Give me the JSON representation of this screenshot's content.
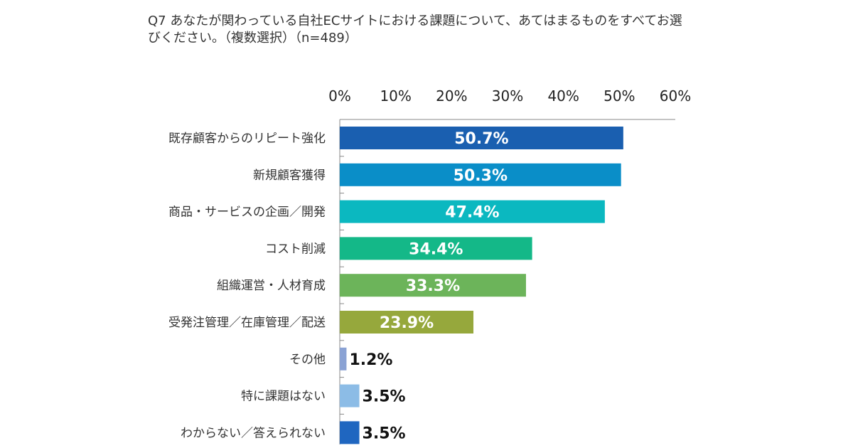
{
  "chart_data": {
    "type": "bar",
    "orientation": "horizontal",
    "title": "Q7 あなたが関わっている自社ECサイトにおける課題について、あてはまるものをすべてお選びください。（複数選択）（n=489）",
    "xlabel": "",
    "ylabel": "",
    "xlim": [
      0,
      60
    ],
    "x_ticks": [
      0,
      10,
      20,
      30,
      40,
      50,
      60
    ],
    "tick_suffix": "%",
    "axis_position": "top",
    "grid": false,
    "legend": "none",
    "categories": [
      "既存顧客からのリピート強化",
      "新規顧客獲得",
      "商品・サービスの企画／開発",
      "コスト削減",
      "組織運営・人材育成",
      "受発注管理／在庫管理／配送",
      "その他",
      "特に課題はない",
      "わからない／答えられない"
    ],
    "values": [
      50.7,
      50.3,
      47.4,
      34.4,
      33.3,
      23.9,
      1.2,
      3.5,
      3.5
    ],
    "data_labels": [
      "50.7%",
      "50.3%",
      "47.4%",
      "34.4%",
      "33.3%",
      "23.9%",
      "1.2%",
      "3.5%",
      "3.5%"
    ],
    "colors": [
      "#1a5fb0",
      "#0a8ec8",
      "#0bb8c0",
      "#14b888",
      "#6cb45a",
      "#96a83c",
      "#8aa2d4",
      "#8cbce6",
      "#1f66c0"
    ]
  }
}
